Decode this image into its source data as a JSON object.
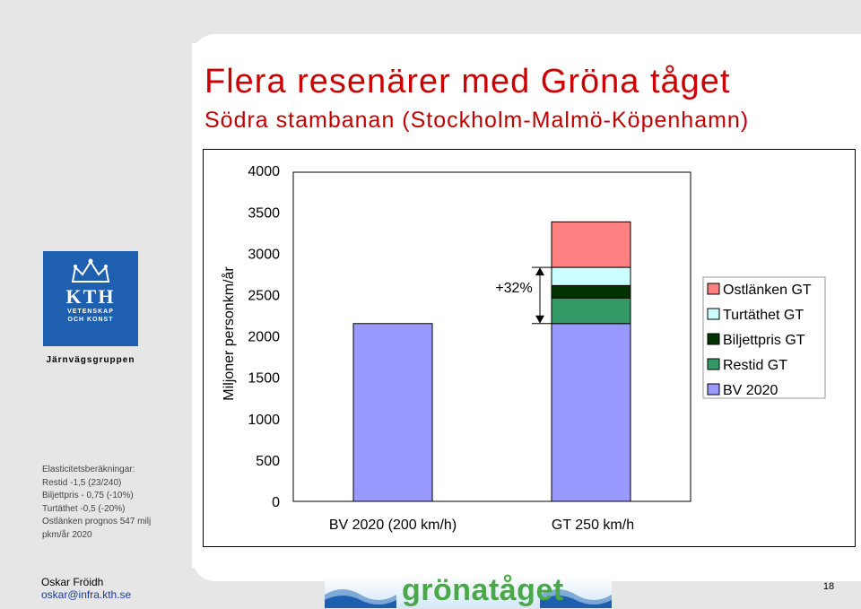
{
  "slide": {
    "title": "Flera resenärer med Gröna tåget",
    "subtitle": "Södra stambanan (Stockholm-Malmö-Köpenhamn)"
  },
  "logo": {
    "name": "KTH",
    "line1": "VETENSKAP",
    "line2": "OCH KONST",
    "department": "Järnvägsgruppen"
  },
  "elasticity_notes": [
    "Elasticitetsberäkningar:",
    "Restid -1,5 (23/240)",
    "Biljettpris - 0,75 (-10%)",
    "Turtäthet -0,5 (-20%)",
    "Ostlänken prognos 547 milj",
    "pkm/år 2020"
  ],
  "footer": {
    "author": "Oskar Fröidh",
    "email": "oskar@infra.kth.se",
    "brand": "grönatåget",
    "page_number": "18"
  },
  "colors": {
    "title": "#cc0000",
    "bv2020": "#9999ff",
    "restid": "#339966",
    "biljettpris": "#003300",
    "turtathet": "#ccffff",
    "ostlanken": "#ff8080"
  },
  "chart_data": {
    "type": "bar",
    "stacked": true,
    "ylabel": "Miljoner personkm/år",
    "ylim": [
      0,
      4000
    ],
    "yticks": [
      "0",
      "500",
      "1000",
      "1500",
      "2000",
      "2500",
      "3000",
      "3500",
      "4000"
    ],
    "categories": [
      "BV 2020 (200 km/h)",
      "GT 250 km/h"
    ],
    "series": [
      {
        "name": "BV 2020",
        "values": [
          2150,
          2150
        ],
        "color": "#9999ff"
      },
      {
        "name": "Restid GT",
        "values": [
          0,
          310
        ],
        "color": "#339966"
      },
      {
        "name": "Biljettpris GT",
        "values": [
          0,
          150
        ],
        "color": "#003300"
      },
      {
        "name": "Turtäthet GT",
        "values": [
          0,
          220
        ],
        "color": "#ccffff"
      },
      {
        "name": "Ostlänken GT",
        "values": [
          0,
          550
        ],
        "color": "#ff8080"
      }
    ],
    "annotation": "+32%",
    "legend_position": "right",
    "legend_order": [
      "Ostlänken GT",
      "Turtäthet GT",
      "Biljettpris GT",
      "Restid GT",
      "BV 2020"
    ],
    "grid": false
  }
}
